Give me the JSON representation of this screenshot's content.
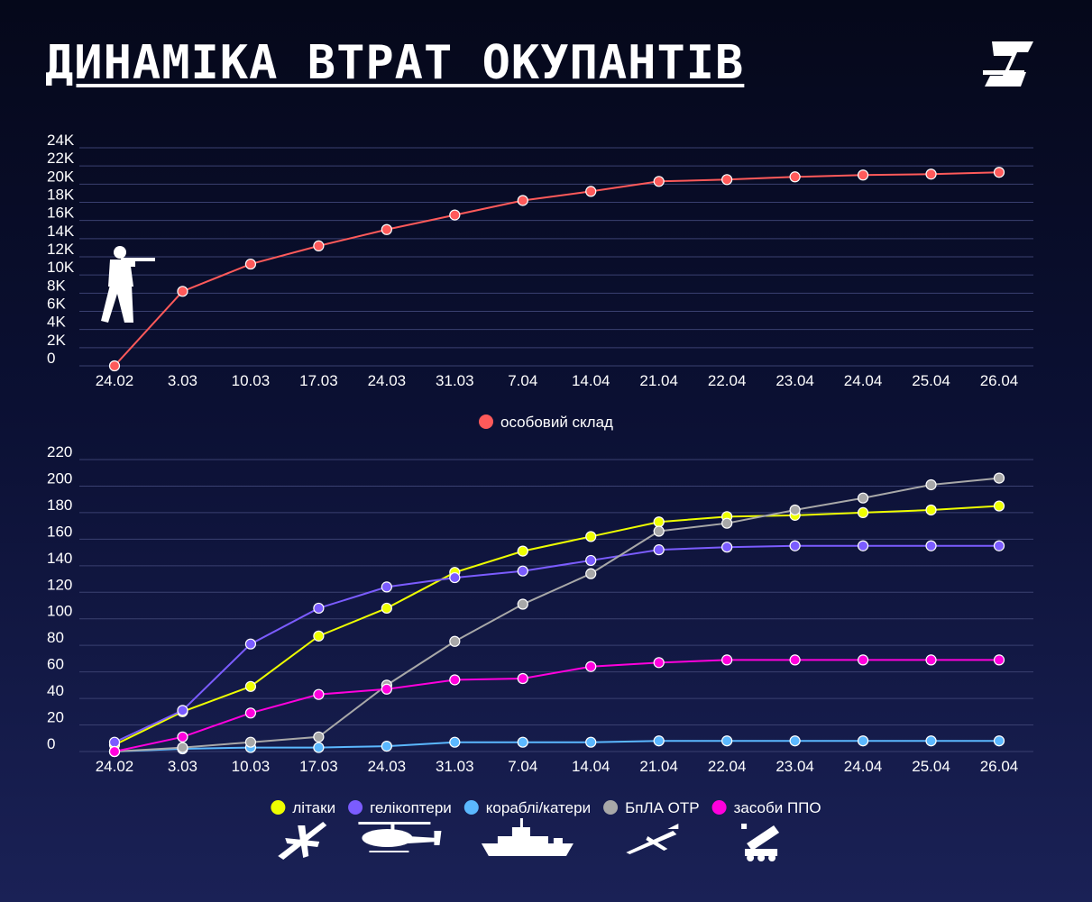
{
  "title": "ДИНАМІКА ВТРАТ ОКУПАНТІВ",
  "logo": {
    "icon": "z-brand-logo"
  },
  "chart_data": [
    {
      "type": "line",
      "categories": [
        "24.02",
        "3.03",
        "10.03",
        "17.03",
        "24.03",
        "31.03",
        "7.04",
        "14.04",
        "21.04",
        "22.04",
        "23.04",
        "24.04",
        "25.04",
        "26.04"
      ],
      "y_ticks": [
        "0",
        "2K",
        "4K",
        "6K",
        "8K",
        "10K",
        "12K",
        "14K",
        "16K",
        "18K",
        "20K",
        "22K",
        "24K"
      ],
      "ylim": [
        0,
        24000
      ],
      "grid": true,
      "legend_position": "bottom-center",
      "icon": "soldier-icon",
      "series": [
        {
          "name": "особовий склад",
          "color": "#ff5a5a",
          "values": [
            0,
            8200,
            11200,
            13200,
            15000,
            16600,
            18200,
            19200,
            20300,
            20500,
            20800,
            21000,
            21100,
            21300
          ]
        }
      ]
    },
    {
      "type": "line",
      "categories": [
        "24.02",
        "3.03",
        "10.03",
        "17.03",
        "24.03",
        "31.03",
        "7.04",
        "14.04",
        "21.04",
        "22.04",
        "23.04",
        "24.04",
        "25.04",
        "26.04"
      ],
      "y_ticks": [
        "0",
        "20",
        "40",
        "60",
        "80",
        "100",
        "120",
        "140",
        "160",
        "180",
        "200",
        "220"
      ],
      "ylim": [
        0,
        220
      ],
      "grid": true,
      "legend_position": "bottom-center",
      "series": [
        {
          "name": "літаки",
          "color": "#eeff00",
          "icon": "plane-icon",
          "values": [
            5,
            30,
            49,
            87,
            108,
            135,
            151,
            162,
            173,
            177,
            178,
            180,
            182,
            185
          ]
        },
        {
          "name": "гелікоптери",
          "color": "#7b5cff",
          "icon": "helicopter-icon",
          "values": [
            7,
            31,
            81,
            108,
            124,
            131,
            136,
            144,
            152,
            154,
            155,
            155,
            155,
            155
          ]
        },
        {
          "name": "кораблі/катери",
          "color": "#5bb8ff",
          "icon": "ship-icon",
          "values": [
            0,
            2,
            3,
            3,
            4,
            7,
            7,
            7,
            8,
            8,
            8,
            8,
            8,
            8
          ]
        },
        {
          "name": "БпЛА ОТР",
          "color": "#a8a8a8",
          "icon": "drone-icon",
          "values": [
            0,
            3,
            7,
            11,
            50,
            83,
            111,
            134,
            166,
            172,
            182,
            191,
            201,
            206
          ]
        },
        {
          "name": "засоби ППО",
          "color": "#ff00dd",
          "icon": "air-defense-icon",
          "values": [
            0,
            11,
            29,
            43,
            47,
            54,
            55,
            64,
            67,
            69,
            69,
            69,
            69,
            69
          ]
        }
      ]
    }
  ]
}
